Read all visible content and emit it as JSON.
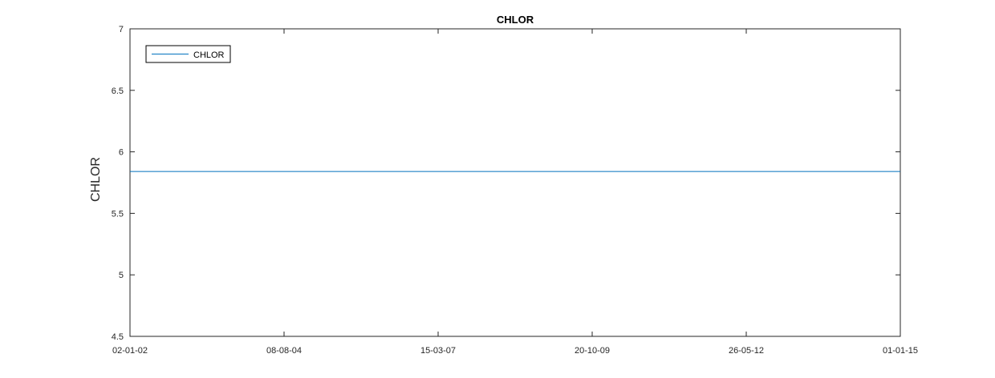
{
  "chart_data": {
    "type": "line",
    "title": "CHLOR",
    "xlabel": "",
    "ylabel": "CHLOR",
    "x_ticks": [
      "02-01-02",
      "08-08-04",
      "15-03-07",
      "20-10-09",
      "26-05-12",
      "01-01-15"
    ],
    "ylim": [
      4.5,
      7
    ],
    "y_ticks": [
      "4.5",
      "5",
      "5.5",
      "6",
      "6.5",
      "7"
    ],
    "series": [
      {
        "name": "CHLOR",
        "color": "#0072BD",
        "x": [
          "02-01-02",
          "01-01-15"
        ],
        "values": [
          5.84,
          5.84
        ]
      }
    ],
    "legend": {
      "placement": "top-left",
      "entries": [
        "CHLOR"
      ]
    },
    "grid": false
  }
}
